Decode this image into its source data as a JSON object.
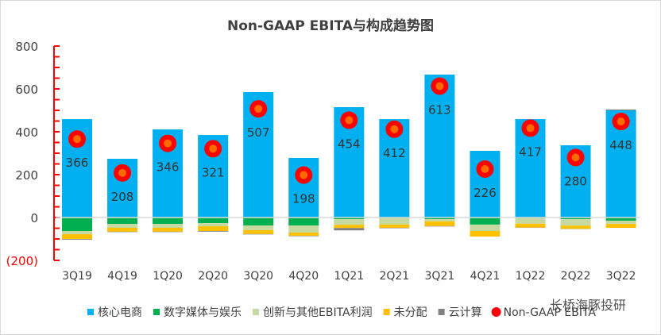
{
  "chart_data": {
    "type": "bar",
    "title": "Non-GAAP EBITA与构成趋势图",
    "xlabel": "",
    "ylabel": "",
    "ylim": [
      -200,
      800
    ],
    "yticks": [
      800,
      600,
      400,
      200,
      0,
      -200
    ],
    "ytick_labels": [
      "800",
      "600",
      "400",
      "200",
      "0",
      "(200)"
    ],
    "grid": false,
    "legend_position": "bottom",
    "categories": [
      "3Q19",
      "4Q19",
      "1Q20",
      "2Q20",
      "3Q20",
      "4Q20",
      "1Q21",
      "2Q21",
      "3Q21",
      "4Q21",
      "1Q22",
      "2Q22",
      "3Q22"
    ],
    "series": [
      {
        "name": "核心电商",
        "type": "bar",
        "color": "#00B0F0",
        "values": [
          459,
          274,
          411,
          385,
          585,
          278,
          515,
          459,
          667,
          311,
          459,
          337,
          500
        ]
      },
      {
        "name": "数字媒体与娱乐",
        "type": "bar",
        "color": "#00B050",
        "values": [
          -63,
          -30,
          -30,
          -26,
          -37,
          -37,
          -8,
          -3,
          -8,
          -33,
          -3,
          -8,
          -15
        ]
      },
      {
        "name": "创新与其他EBITA利润",
        "type": "bar",
        "color": "#C5D9A0",
        "values": [
          -15,
          -18,
          -18,
          -15,
          -22,
          -33,
          -26,
          -30,
          -10,
          -30,
          -26,
          -30,
          -15
        ]
      },
      {
        "name": "未分配",
        "type": "bar",
        "color": "#FFC000",
        "values": [
          -22,
          -18,
          -18,
          -22,
          -18,
          -15,
          -15,
          -15,
          -22,
          -26,
          -18,
          -15,
          -18
        ]
      },
      {
        "name": "云计算",
        "type": "bar",
        "color": "#808080",
        "values": [
          -3,
          -2,
          -2,
          -3,
          -2,
          -2,
          -11,
          -2,
          -2,
          0,
          -1,
          -1,
          4
        ]
      },
      {
        "name": "Non-GAAP EBITA",
        "type": "scatter",
        "color": "#FF0000",
        "values": [
          366,
          208,
          346,
          321,
          507,
          198,
          454,
          412,
          613,
          226,
          417,
          280,
          448
        ]
      }
    ]
  },
  "logo_text": "长桥海豚投研"
}
